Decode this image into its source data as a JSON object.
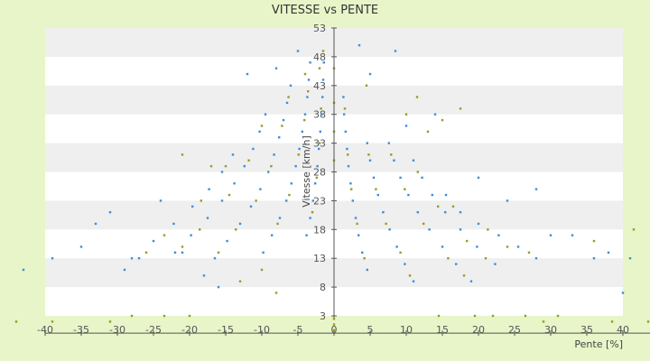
{
  "chart_data": {
    "type": "scatter",
    "title": "VITESSE vs PENTE",
    "xlabel": "Pente [%]",
    "ylabel": "Vitesse [km/h]",
    "xlim": [
      -40,
      40
    ],
    "ylim": [
      3,
      53
    ],
    "x_ticks": [
      -40,
      -35,
      -30,
      -25,
      -20,
      -15,
      -10,
      -5,
      0,
      5,
      10,
      15,
      20,
      25,
      30,
      35,
      40
    ],
    "y_ticks": [
      3,
      8,
      13,
      18,
      23,
      28,
      33,
      38,
      43,
      48,
      53
    ],
    "grid": "horizontal alternating bands",
    "legend": "none",
    "colors": {
      "series_blue": "#3b8fd9",
      "series_olive": "#9a9a22",
      "band": "#efefef",
      "plot_bg": "#ffffff",
      "page_bg": "#e8f5c8"
    },
    "series": [
      {
        "color": "blue",
        "points": [
          [
            -1.4,
            47
          ],
          [
            -1.5,
            44
          ],
          [
            -1.6,
            41
          ],
          [
            -1.7,
            38
          ],
          [
            -1.9,
            35
          ],
          [
            -2.1,
            32
          ],
          [
            -2.3,
            29
          ],
          [
            -2.6,
            26
          ],
          [
            -2.9,
            23
          ],
          [
            -3.3,
            20
          ],
          [
            -3.8,
            17
          ],
          [
            -3.3,
            47
          ],
          [
            -3.5,
            44
          ],
          [
            -3.7,
            41
          ],
          [
            -4.0,
            38
          ],
          [
            -4.4,
            35
          ],
          [
            -4.8,
            32
          ],
          [
            -5.3,
            29
          ],
          [
            -5.9,
            26
          ],
          [
            -6.6,
            23
          ],
          [
            -7.5,
            20
          ],
          [
            -8.6,
            17
          ],
          [
            -9.8,
            14
          ],
          [
            -6.0,
            43
          ],
          [
            -6.5,
            40
          ],
          [
            -7.0,
            37
          ],
          [
            -7.6,
            34
          ],
          [
            -8.3,
            31
          ],
          [
            -9.1,
            28
          ],
          [
            -10.2,
            25
          ],
          [
            -11.5,
            22
          ],
          [
            -13.0,
            19
          ],
          [
            -14.8,
            16
          ],
          [
            -16.5,
            13
          ],
          [
            -9.5,
            38
          ],
          [
            -10.3,
            35
          ],
          [
            -11.2,
            32
          ],
          [
            -12.4,
            29
          ],
          [
            -13.8,
            26
          ],
          [
            -15.5,
            23
          ],
          [
            -17.5,
            20
          ],
          [
            -19.8,
            17
          ],
          [
            -22.0,
            14
          ],
          [
            -14.0,
            31
          ],
          [
            -15.5,
            28
          ],
          [
            -17.3,
            25
          ],
          [
            -19.6,
            22
          ],
          [
            -22.2,
            19
          ],
          [
            -25.0,
            16
          ],
          [
            -28.0,
            13
          ],
          [
            -35.0,
            15
          ],
          [
            -33.0,
            19
          ],
          [
            -31.0,
            21
          ],
          [
            -29.0,
            11
          ],
          [
            -27.0,
            13
          ],
          [
            -24.0,
            23
          ],
          [
            -21.0,
            14
          ],
          [
            -18.0,
            10
          ],
          [
            -16.0,
            8
          ],
          [
            -12.0,
            45
          ],
          [
            -8.0,
            46
          ],
          [
            -5.0,
            49
          ],
          [
            -39.0,
            13
          ],
          [
            -43.0,
            11
          ],
          [
            1.3,
            41
          ],
          [
            1.4,
            38
          ],
          [
            1.6,
            35
          ],
          [
            1.8,
            32
          ],
          [
            2.0,
            29
          ],
          [
            2.3,
            26
          ],
          [
            2.6,
            23
          ],
          [
            3.0,
            20
          ],
          [
            3.4,
            17
          ],
          [
            3.9,
            14
          ],
          [
            4.6,
            11
          ],
          [
            4.6,
            33
          ],
          [
            5.0,
            30
          ],
          [
            5.5,
            27
          ],
          [
            6.1,
            24
          ],
          [
            6.8,
            21
          ],
          [
            7.7,
            18
          ],
          [
            8.7,
            15
          ],
          [
            9.8,
            12
          ],
          [
            11.0,
            9
          ],
          [
            7.6,
            33
          ],
          [
            8.3,
            30
          ],
          [
            9.2,
            27
          ],
          [
            10.3,
            24
          ],
          [
            11.6,
            21
          ],
          [
            13.2,
            18
          ],
          [
            15.0,
            15
          ],
          [
            16.9,
            12
          ],
          [
            19.0,
            9
          ],
          [
            11.0,
            30
          ],
          [
            12.2,
            27
          ],
          [
            13.6,
            24
          ],
          [
            15.4,
            21
          ],
          [
            17.5,
            18
          ],
          [
            19.8,
            15
          ],
          [
            22.3,
            12
          ],
          [
            15.5,
            24
          ],
          [
            17.5,
            21
          ],
          [
            20.0,
            19
          ],
          [
            22.8,
            17
          ],
          [
            25.5,
            15
          ],
          [
            28.0,
            13
          ],
          [
            3.5,
            50
          ],
          [
            5.0,
            45
          ],
          [
            8.5,
            49
          ],
          [
            10.0,
            36
          ],
          [
            14.0,
            38
          ],
          [
            20.0,
            27
          ],
          [
            24.0,
            23
          ],
          [
            28.0,
            25
          ],
          [
            30.0,
            17
          ],
          [
            33.0,
            17
          ],
          [
            36.0,
            13
          ],
          [
            38.0,
            14
          ],
          [
            40.0,
            7
          ],
          [
            41.0,
            13
          ]
        ]
      },
      {
        "color": "olive",
        "points": [
          [
            -1.5,
            49
          ],
          [
            -1.8,
            39
          ],
          [
            -2.0,
            33
          ],
          [
            -2.4,
            27
          ],
          [
            -3.0,
            21
          ],
          [
            -3.6,
            42
          ],
          [
            -4.1,
            37
          ],
          [
            -4.9,
            31
          ],
          [
            -6.2,
            24
          ],
          [
            -7.8,
            19
          ],
          [
            -6.3,
            41
          ],
          [
            -7.2,
            36
          ],
          [
            -8.7,
            29
          ],
          [
            -10.8,
            23
          ],
          [
            -13.6,
            18
          ],
          [
            -16.0,
            14
          ],
          [
            -10.0,
            36
          ],
          [
            -11.8,
            30
          ],
          [
            -14.5,
            24
          ],
          [
            -18.6,
            18
          ],
          [
            -21.0,
            15
          ],
          [
            -15.0,
            29
          ],
          [
            -18.4,
            23
          ],
          [
            -23.5,
            17
          ],
          [
            -26.0,
            14
          ],
          [
            -44.0,
            2
          ],
          [
            -39.0,
            2
          ],
          [
            -31.0,
            2
          ],
          [
            -28.0,
            3
          ],
          [
            -23.5,
            3
          ],
          [
            -20.0,
            3
          ],
          [
            -21.0,
            31
          ],
          [
            -17.0,
            29
          ],
          [
            -13.0,
            9
          ],
          [
            -10.0,
            11
          ],
          [
            -8.0,
            7
          ],
          [
            -4.0,
            45
          ],
          [
            -2.0,
            46
          ],
          [
            0.0,
            0.5
          ],
          [
            0.0,
            1.5
          ],
          [
            0.0,
            2.5
          ],
          [
            0.0,
            30
          ],
          [
            0.0,
            35
          ],
          [
            0.0,
            40
          ],
          [
            0.0,
            46
          ],
          [
            1.5,
            39
          ],
          [
            1.9,
            31
          ],
          [
            2.4,
            25
          ],
          [
            3.2,
            19
          ],
          [
            4.2,
            13
          ],
          [
            4.8,
            31
          ],
          [
            5.8,
            25
          ],
          [
            7.2,
            19
          ],
          [
            9.2,
            14
          ],
          [
            10.5,
            10
          ],
          [
            7.9,
            31
          ],
          [
            9.8,
            25
          ],
          [
            12.4,
            19
          ],
          [
            15.8,
            13
          ],
          [
            18.0,
            10
          ],
          [
            11.6,
            28
          ],
          [
            14.4,
            22
          ],
          [
            18.4,
            16
          ],
          [
            21.0,
            13
          ],
          [
            16.5,
            22
          ],
          [
            21.3,
            18
          ],
          [
            24.0,
            15
          ],
          [
            27.0,
            14
          ],
          [
            4.5,
            43
          ],
          [
            10.0,
            38
          ],
          [
            11.5,
            41
          ],
          [
            13.0,
            35
          ],
          [
            15.0,
            37
          ],
          [
            17.5,
            39
          ],
          [
            14.5,
            3
          ],
          [
            19.5,
            3
          ],
          [
            22.0,
            3
          ],
          [
            26.5,
            3
          ],
          [
            29.0,
            2
          ],
          [
            31.0,
            3
          ],
          [
            36.0,
            16
          ],
          [
            38.5,
            2
          ],
          [
            41.5,
            18
          ],
          [
            44.0,
            2
          ]
        ]
      }
    ]
  }
}
